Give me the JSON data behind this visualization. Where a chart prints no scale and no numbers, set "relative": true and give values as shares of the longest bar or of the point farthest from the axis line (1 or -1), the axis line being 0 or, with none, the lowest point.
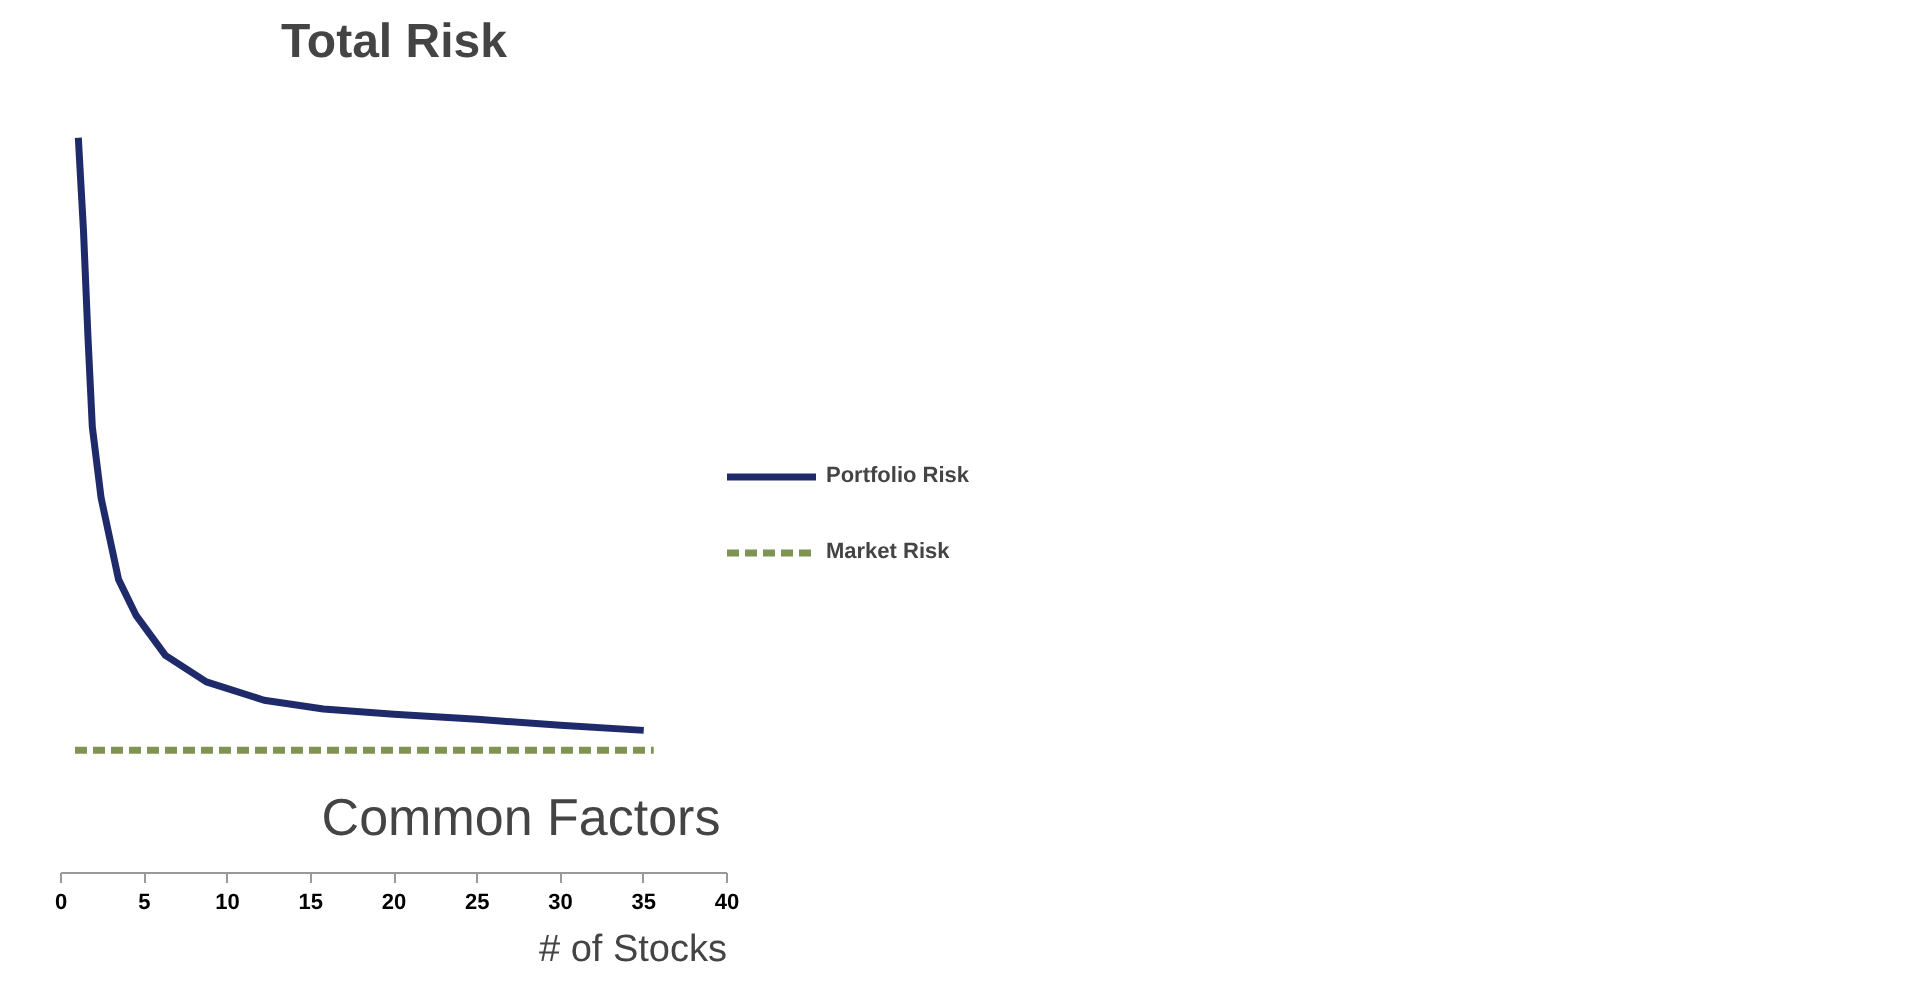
{
  "chart_data": {
    "type": "line",
    "title": "Total Risk",
    "xlabel": "# of Stocks",
    "relative": true,
    "xlim": [
      0,
      40
    ],
    "xticks": [
      0,
      5,
      10,
      15,
      20,
      25,
      30,
      35,
      40
    ],
    "tick_labels": "x",
    "grid": false,
    "legend": "right",
    "annotations": [
      "Common Factors"
    ],
    "series": [
      {
        "name": "Portfolio Risk",
        "color": "#1f2a6b",
        "line_style": "solid",
        "x": [
          1.04,
          1.35,
          1.62,
          1.88,
          2.41,
          3.46,
          4.52,
          6.27,
          8.73,
          12.2,
          15.76,
          20,
          25,
          30,
          35
        ],
        "values": [
          1.0,
          0.874,
          0.729,
          0.607,
          0.51,
          0.399,
          0.35,
          0.296,
          0.26,
          0.235,
          0.223,
          0.216,
          0.209,
          0.201,
          0.194
        ]
      },
      {
        "name": "Market Risk",
        "color": "#7f9452",
        "line_style": "dashed",
        "x": [
          0.84,
          35.6
        ],
        "values": [
          0.167,
          0.167
        ]
      }
    ]
  }
}
